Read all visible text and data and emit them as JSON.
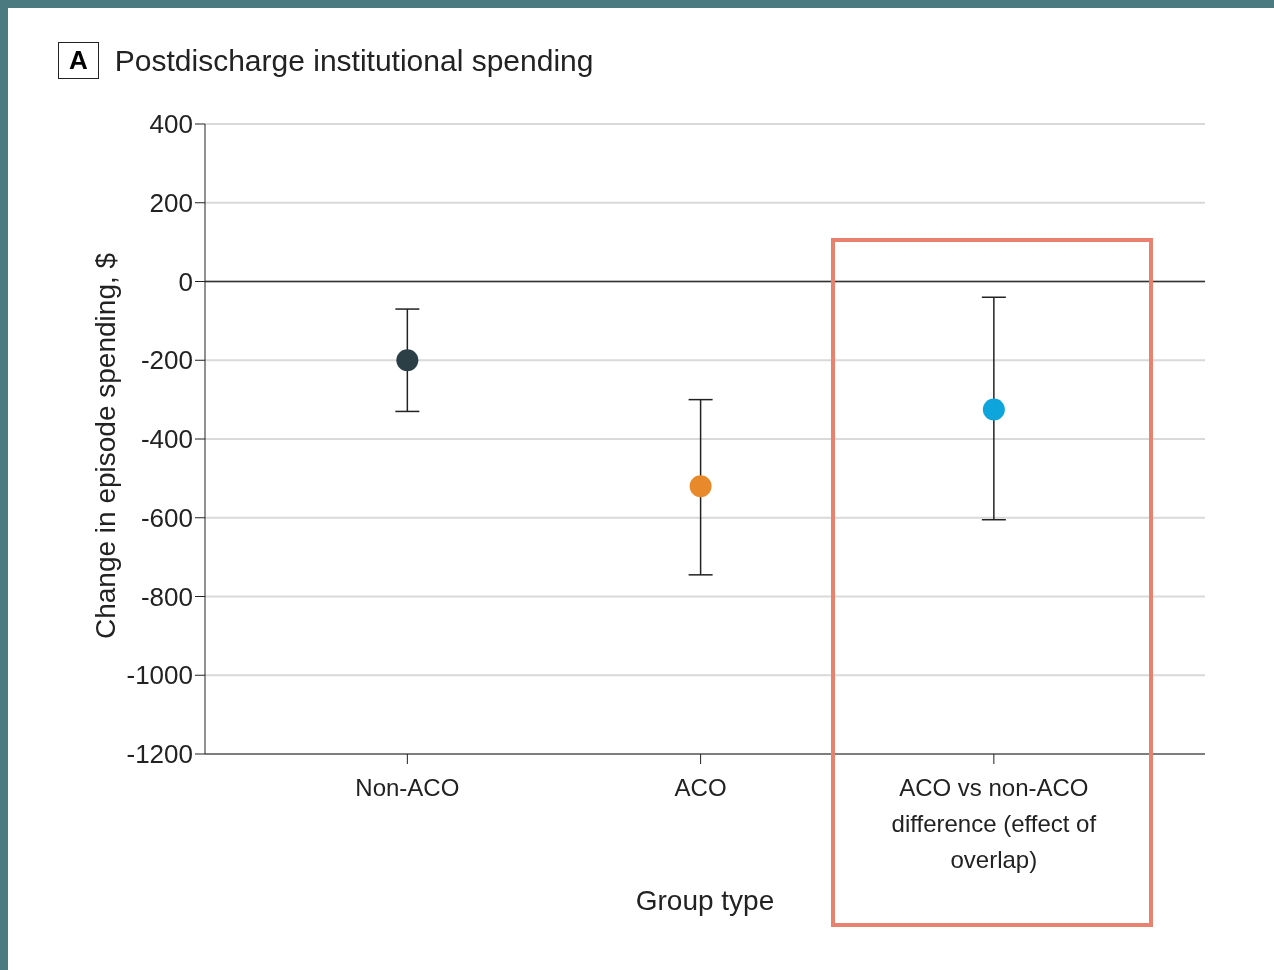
{
  "chart_data": {
    "type": "scatter",
    "title": "Postdischarge institutional spending",
    "annotations": [
      "A"
    ],
    "xlabel": "Group type",
    "ylabel": "Change in episode spending, $",
    "categories": [
      "Non-ACO",
      "ACO",
      "ACO vs non-ACO difference (effect of overlap)"
    ],
    "series": [
      {
        "values": [
          -200,
          -520,
          -325
        ],
        "colors": [
          "#2b3f47",
          "#e8892b",
          "#0ea5dc"
        ],
        "errors": [
          [
            -330,
            -70
          ],
          [
            -745,
            -300
          ],
          [
            -605,
            -40
          ]
        ]
      }
    ],
    "ylim": [
      -1200,
      400
    ],
    "yticks": [
      -1200,
      -1000,
      -800,
      -600,
      -400,
      -200,
      0,
      200,
      400
    ],
    "grid": "y",
    "marker": "circle",
    "ref_lines": [
      {
        "axis": "y",
        "value": 0
      }
    ]
  }
}
